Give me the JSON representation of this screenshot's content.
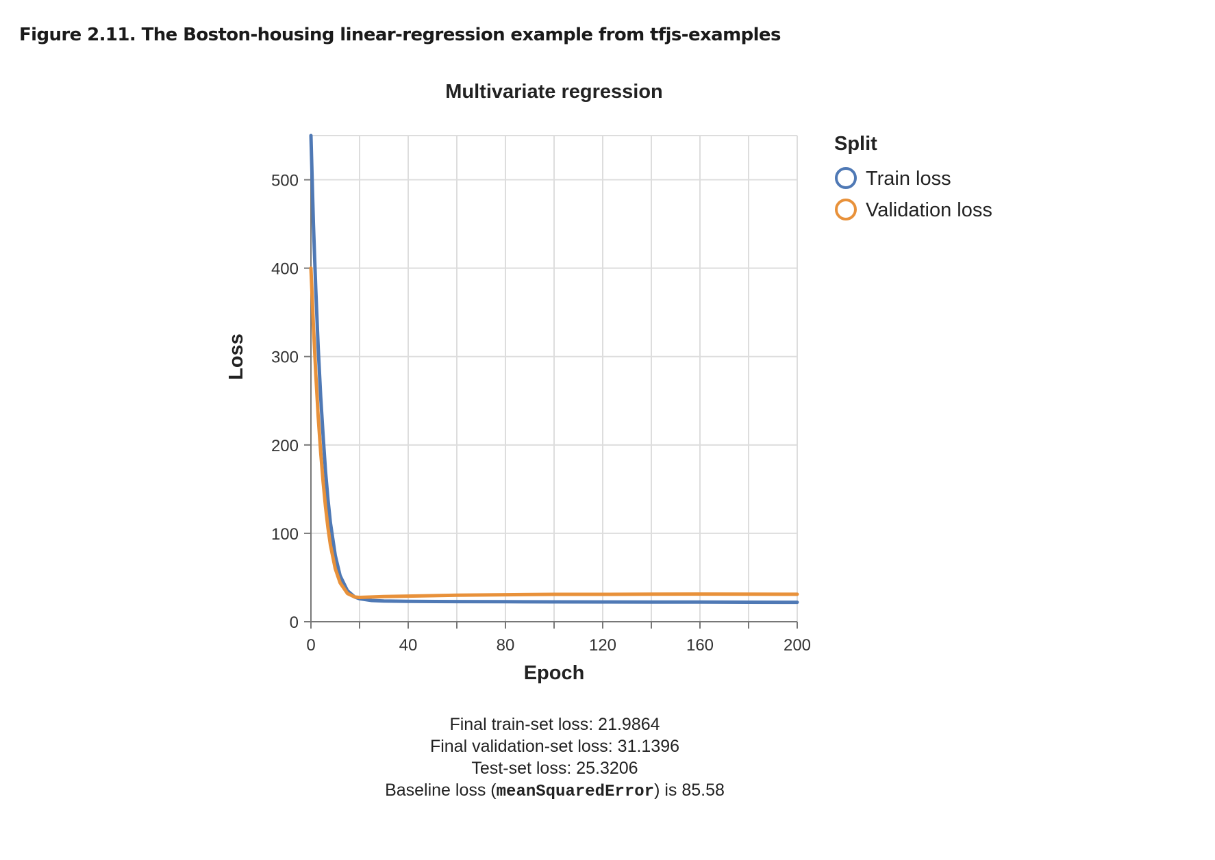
{
  "caption": "Figure 2.11. The Boston-housing linear-regression example from tfjs-examples",
  "chart_data": {
    "type": "line",
    "title": "Multivariate regression",
    "xlabel": "Epoch",
    "ylabel": "Loss",
    "xlim": [
      0,
      200
    ],
    "ylim": [
      0,
      550
    ],
    "xticks": [
      0,
      20,
      40,
      60,
      80,
      100,
      120,
      140,
      160,
      180,
      200
    ],
    "xtick_labels": [
      "0",
      "",
      "40",
      "",
      "80",
      "",
      "120",
      "",
      "160",
      "",
      "200"
    ],
    "yticks": [
      0,
      100,
      200,
      300,
      400,
      500
    ],
    "ytick_labels": [
      "0",
      "100",
      "200",
      "300",
      "400",
      "500"
    ],
    "grid": true,
    "legend": {
      "title": "Split",
      "position": "right"
    },
    "series": [
      {
        "name": "Train loss",
        "color": "#4f79b5",
        "x": [
          0,
          1,
          2,
          3,
          4,
          5,
          6,
          7,
          8,
          10,
          12,
          15,
          18,
          20,
          25,
          30,
          40,
          60,
          80,
          100,
          120,
          140,
          160,
          180,
          200
        ],
        "y": [
          550,
          450,
          375,
          310,
          255,
          210,
          170,
          138,
          112,
          75,
          52,
          35,
          28,
          26,
          24,
          23.5,
          23,
          22.8,
          22.6,
          22.5,
          22.4,
          22.3,
          22.2,
          22.1,
          22
        ]
      },
      {
        "name": "Validation loss",
        "color": "#e8913a",
        "x": [
          0,
          1,
          2,
          3,
          4,
          5,
          6,
          7,
          8,
          10,
          12,
          15,
          18,
          20,
          25,
          30,
          40,
          60,
          80,
          100,
          120,
          140,
          160,
          180,
          200
        ],
        "y": [
          400,
          335,
          280,
          232,
          192,
          158,
          130,
          106,
          87,
          60,
          44,
          32,
          28,
          27.5,
          28,
          28.5,
          29,
          30,
          30.5,
          31,
          31,
          31.2,
          31.3,
          31.2,
          31.1
        ]
      }
    ]
  },
  "summary": {
    "train": "Final train-set loss: 21.9864",
    "validation": "Final validation-set loss: 31.1396",
    "test": "Test-set loss: 25.3206",
    "baseline_prefix": "Baseline loss (",
    "baseline_code": "meanSquaredError",
    "baseline_suffix": ") is 85.58"
  }
}
